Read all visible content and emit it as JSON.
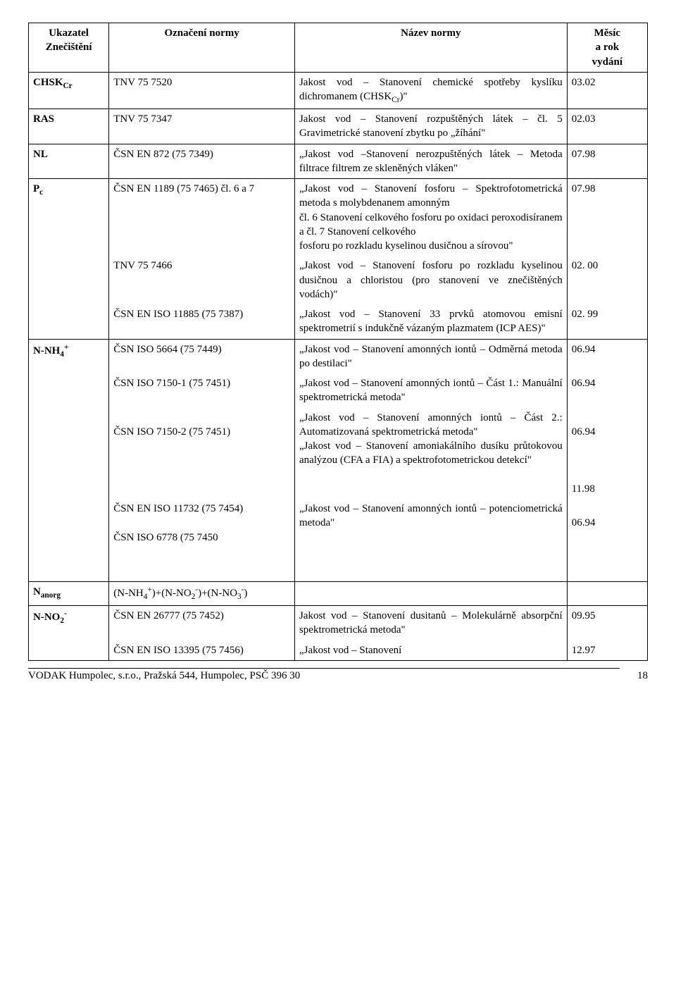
{
  "header": {
    "col_a1": "Ukazatel",
    "col_a2": "Znečištění",
    "col_b": "Označení normy",
    "col_c": "Název normy",
    "col_d1": "Měsíc",
    "col_d2": "a rok",
    "col_d3": "vydání"
  },
  "rows": {
    "chsk": {
      "ind_pre": "CHSK",
      "ind_sub": "Cr",
      "norm": "TNV 75 7520",
      "desc1": "Jakost vod – Stanovení chemické spotřeby kyslíku dichromanem (CHSK",
      "desc_sub": "Cr",
      "desc2": ")\"",
      "date": "03.02"
    },
    "ras": {
      "ind": "RAS",
      "norm": "TNV 75 7347",
      "desc": "Jakost vod – Stanovení rozpuštěných látek – čl. 5 Gravimetrické stanovení zbytku po „žíhání\"",
      "date": "02.03"
    },
    "nl": {
      "ind": "NL",
      "norm": "ČSN EN 872 (75 7349)",
      "desc": "„Jakost vod –Stanovení nerozpuštěných látek – Metoda filtrace filtrem ze skleněných vláken\"",
      "date": "07.98"
    },
    "pc": {
      "ind_pre": "P",
      "ind_sub": "c",
      "norm1": "ČSN EN 1189 (75 7465) čl. 6 a 7",
      "norm2": "TNV 75 7466",
      "norm3": "ČSN EN ISO 11885 (75 7387)",
      "desc1": "„Jakost vod – Stanovení fosforu – Spektrofotometrická metoda s molybdenanem amonným",
      "desc1b": "čl. 6 Stanovení celkového fosforu po oxidaci peroxodisíranem a čl. 7 Stanovení celkového",
      "desc1c": "fosforu po rozkladu kyselinou dusičnou a sírovou\"",
      "desc2": "„Jakost vod – Stanovení fosforu po rozkladu kyselinou dusičnou a chloristou (pro stanovení ve znečištěných vodách)\"",
      "desc3": "„Jakost vod – Stanovení 33 prvků atomovou emisní spektrometrií s indukčně vázaným plazmatem (ICP AES)\"",
      "date1": "07.98",
      "date2": "02. 00",
      "date3": "02. 99"
    },
    "nnh4": {
      "ind_pre": "N-NH",
      "ind_sub": "4",
      "ind_sup": "+",
      "norm1": "ČSN ISO 5664 (75 7449)",
      "norm2": "ČSN ISO 7150-1 (75 7451)",
      "norm3": "ČSN ISO 7150-2 (75 7451)",
      "norm4": "ČSN EN ISO 11732 (75 7454)",
      "norm5": "ČSN ISO 6778 (75 7450",
      "desc1": "„Jakost vod – Stanovení amonných iontů – Odměrná metoda po destilaci\"",
      "desc2": "„Jakost vod – Stanovení amonných iontů – Část 1.: Manuální spektrometrická metoda\"",
      "desc3a": "„Jakost vod – Stanovení amonných iontů – Část 2.: Automatizovaná spektrometrická  metoda\"",
      "desc3b": "„Jakost vod – Stanovení amoniakálního dusíku průtokovou analýzou (CFA a FIA) a spektrofotometrickou detekcí\"",
      "desc5": "„Jakost vod – Stanovení amonných iontů – potenciometrická metoda\"",
      "date1": "06.94",
      "date2": "06.94",
      "date3": "06.94",
      "date4": "11.98",
      "date5": "06.94"
    },
    "nanorg": {
      "ind_pre": "N",
      "ind_sub": "anorg",
      "norm_a": "(N-NH",
      "norm_b": ")+(N-NO",
      "norm_c": ")+(N-NO",
      "norm_d": ")"
    },
    "nno2": {
      "ind_pre": "N-NO",
      "ind_sub": "2",
      "ind_sup": "-",
      "norm1": "ČSN EN 26777 (75 7452)",
      "norm2": "ČSN EN ISO 13395 (75 7456)",
      "desc1": "Jakost vod – Stanovení dusitanů – Molekulárně absorpční spektrometrická metoda\"",
      "desc2": "„Jakost vod – Stanovení",
      "date1": "09.95",
      "date2": "12.97"
    }
  },
  "footer": {
    "left": "VODAK Humpolec, s.r.o., Pražská 544, Humpolec, PSČ 396 30",
    "page": "18"
  }
}
